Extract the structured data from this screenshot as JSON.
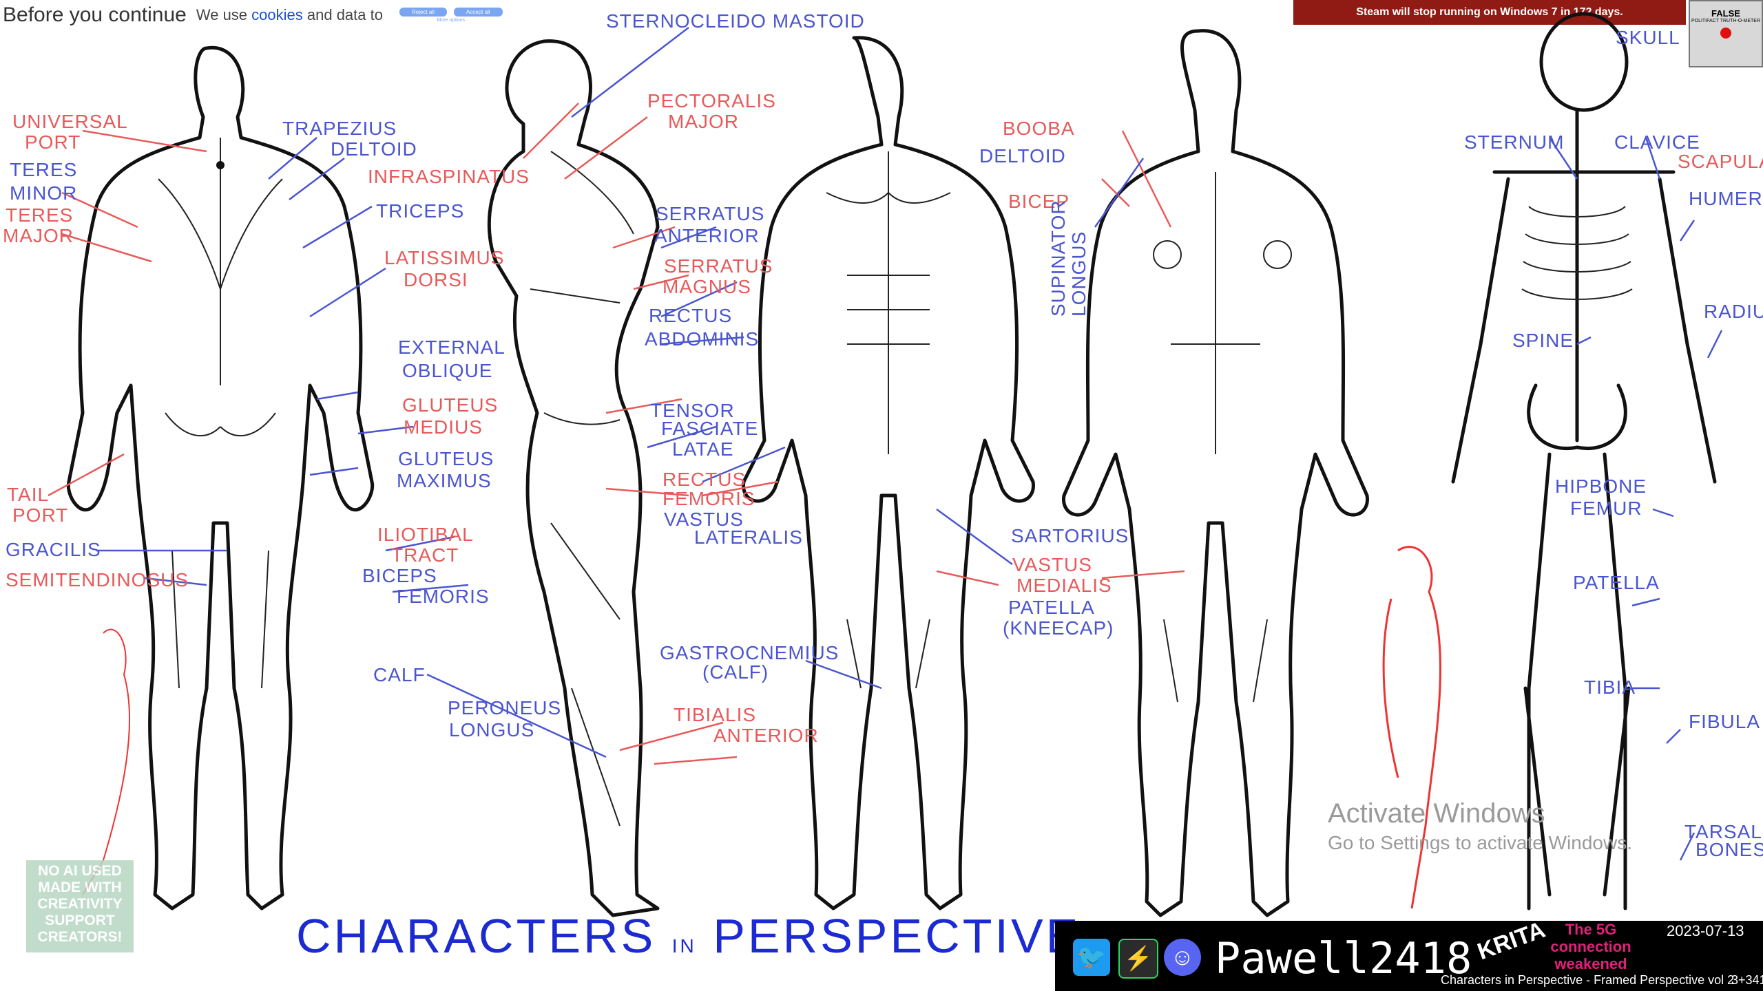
{
  "consent": {
    "title": "Before you continue",
    "message_prefix": "We use ",
    "message_link": "cookies",
    "message_suffix": " and data to",
    "reject_label": "Reject all",
    "accept_label": "Accept all",
    "more_options": "More options"
  },
  "steam_banner": "Steam will stop running on Windows 7 in 172 days.",
  "gauge": {
    "label": "FALSE",
    "sub": "POLITIFACT TRUTH-O-METER"
  },
  "labels": {
    "back": [
      "UNIVERSAL PORT",
      "TERES MINOR",
      "TERES MAJOR",
      "TAIL PORT",
      "GRACILIS",
      "SEMITENDINOSUS",
      "TRAPEZIUS",
      "DELTOID",
      "INFRASPINATUS",
      "TRICEPS",
      "LATISSIMUS DORSI",
      "EXTERNAL OBLIQUE",
      "GLUTEUS MEDIUS",
      "GLUTEUS MAXIMUS",
      "ILIOTIBAL TRACT",
      "BICEPS FEMORIS",
      "CALF",
      "PERONEUS LONGUS"
    ],
    "side": [
      "STERNOCLEIDO MASTOID",
      "PECTORALIS MAJOR",
      "SERRATUS ANTERIOR",
      "SERRATUS MAGNUS",
      "RECTUS ABDOMINIS",
      "TENSOR FASCIATE LATAE",
      "RECTUS FEMORIS",
      "VASTUS LATERALIS",
      "GASTROCNEMIUS (CALF)",
      "TIBIALIS ANTERIOR"
    ],
    "front": [
      "BOOBA",
      "DELTOID",
      "BICEP",
      "SUPINATOR LONGUS",
      "SARTORIUS",
      "VASTUS MEDIALIS",
      "PATELLA (KNEECAP)"
    ],
    "skeleton": [
      "SKULL",
      "STERNUM",
      "CLAVICE",
      "SCAPULA",
      "HUMERUS",
      "RADIUS",
      "SPINE",
      "HIPBONE",
      "FEMUR",
      "PATELLA",
      "TIBIA",
      "FIBULA",
      "TARSAL BONES"
    ]
  },
  "footer_title": {
    "word1": "CHARACTERS",
    "word2": "IN",
    "word3": "PERSPECTIVE"
  },
  "watermark": {
    "line1": "Activate Windows",
    "line2": "Go to Settings to activate Windows."
  },
  "badge": {
    "line1": "NO AI USED",
    "line2": "MADE WITH",
    "line3": "CREATIVITY",
    "line4": "SUPPORT",
    "line5": "CREATORS!"
  },
  "streambar": {
    "handle": "Pawell2418",
    "app": "KRITA",
    "banner": "The 5G connection weakened",
    "date": "2023-07-13",
    "episode": "Characters in Perspective - Framed Perspective vol 2",
    "counter": "3+341",
    "icons": [
      "twitter-icon",
      "itch-icon",
      "discord-icon"
    ]
  },
  "colors": {
    "red_label": "#e85a5a",
    "blue_label": "#4a55d0",
    "title_blue": "#1c2ad1",
    "steam_red": "#8f1b14"
  }
}
